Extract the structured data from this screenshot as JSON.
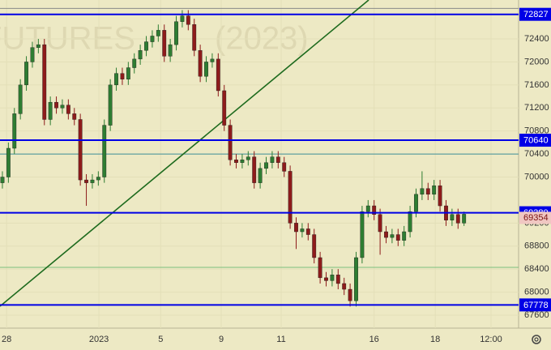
{
  "chart_data": {
    "type": "candlestick",
    "watermark": [
      "FUTURES",
      "(2023)"
    ],
    "open": [
      69900,
      70000,
      70500,
      71100,
      71600,
      72000,
      72250,
      72300,
      71000,
      71300,
      71200,
      71250,
      71100,
      71000,
      69950,
      69900,
      69950,
      70000,
      70900,
      71600,
      71800,
      71700,
      71900,
      72050,
      72200,
      72350,
      72450,
      72550,
      72100,
      72300,
      72700,
      72800,
      72650,
      72200,
      71750,
      72000,
      72050,
      71500,
      70900,
      70300,
      70250,
      70300,
      70350,
      69900,
      70150,
      70250,
      70350,
      70250,
      70100,
      69200,
      69050,
      69100,
      69000,
      68600,
      68250,
      68200,
      68300,
      68150,
      68050,
      67850,
      68600,
      69400,
      69500,
      69350,
      69050,
      68950,
      69000,
      68900,
      69050,
      69400,
      69700,
      69800,
      69700,
      69850,
      69500,
      69250,
      69350,
      69200
    ],
    "high": [
      70100,
      70600,
      71200,
      71700,
      72100,
      72350,
      72400,
      72400,
      71400,
      71400,
      71350,
      71350,
      71200,
      71100,
      70050,
      70050,
      70100,
      71000,
      71700,
      71900,
      71900,
      72000,
      72150,
      72300,
      72450,
      72550,
      72650,
      72650,
      72400,
      72800,
      72900,
      72900,
      72750,
      72300,
      72100,
      72150,
      72150,
      71600,
      71000,
      70400,
      70400,
      70450,
      70450,
      70250,
      70350,
      70450,
      70450,
      70350,
      70200,
      69300,
      69200,
      69200,
      69100,
      68700,
      68350,
      68400,
      68400,
      68250,
      68150,
      68700,
      69500,
      69600,
      69600,
      69450,
      69150,
      69100,
      69100,
      69150,
      69500,
      69800,
      70100,
      69900,
      69950,
      69950,
      69600,
      69450,
      69450,
      69400
    ],
    "low": [
      69800,
      69900,
      70400,
      71000,
      71500,
      71900,
      72150,
      70900,
      70900,
      71100,
      71100,
      71000,
      70900,
      69850,
      69500,
      69800,
      69850,
      69900,
      70800,
      71500,
      71600,
      71600,
      71800,
      71950,
      72100,
      72250,
      72350,
      72000,
      72000,
      72200,
      72600,
      72550,
      72100,
      71650,
      71650,
      71900,
      71400,
      70800,
      70200,
      70150,
      70150,
      70200,
      69800,
      69800,
      70050,
      70150,
      70150,
      70000,
      69100,
      68750,
      68950,
      68900,
      68500,
      68150,
      68100,
      68100,
      68050,
      67950,
      67750,
      67750,
      68500,
      69300,
      69250,
      68650,
      68850,
      68850,
      68800,
      68800,
      68950,
      69300,
      69600,
      69600,
      69600,
      69400,
      69150,
      69150,
      69100,
      69150
    ],
    "close": [
      70000,
      70500,
      71100,
      71600,
      72000,
      72250,
      72300,
      71000,
      71300,
      71200,
      71250,
      71100,
      71000,
      69950,
      69900,
      69950,
      70000,
      70900,
      71600,
      71800,
      71700,
      71900,
      72050,
      72200,
      72350,
      72450,
      72550,
      72100,
      72300,
      72700,
      72800,
      72650,
      72200,
      71750,
      72000,
      72050,
      71500,
      70900,
      70300,
      70250,
      70300,
      70350,
      69900,
      70150,
      70250,
      70350,
      70250,
      70100,
      69200,
      69050,
      69100,
      69000,
      68600,
      68250,
      68200,
      68300,
      68150,
      68050,
      67850,
      68600,
      69400,
      69500,
      69350,
      69050,
      68950,
      69000,
      68900,
      69050,
      69400,
      69700,
      69800,
      69700,
      69850,
      69500,
      69250,
      69350,
      69200,
      69354
    ],
    "up_color": "#2e7d32",
    "down_color": "#8e1b1b",
    "ylim": [
      67375,
      73076
    ],
    "yticks": [
      67600,
      68000,
      68400,
      68800,
      69200,
      70000,
      70400,
      70800,
      71200,
      71600,
      72000,
      72400
    ],
    "xlim": [
      -0.4,
      86.1
    ],
    "xticks": [
      {
        "value": 0.7,
        "label": "28"
      },
      {
        "value": 16.1,
        "label": "2023"
      },
      {
        "value": 26.4,
        "label": "5"
      },
      {
        "value": 36.5,
        "label": "9"
      },
      {
        "value": 46.5,
        "label": "11"
      },
      {
        "value": 62.0,
        "label": "16"
      },
      {
        "value": 72.2,
        "label": "18"
      },
      {
        "value": 81.5,
        "label": "12:00"
      }
    ],
    "levels": [
      72827,
      70640,
      69380,
      67778
    ],
    "level_color": "#0000e6",
    "guides": [
      {
        "value": 72930,
        "color": "#8a8a8a"
      },
      {
        "value": 70400,
        "color": "#3f8f9a"
      },
      {
        "value": 68430,
        "color": "#7cc07c"
      }
    ],
    "trendline": {
      "x": [
        -0.4,
        61.1
      ],
      "y": [
        67755,
        73076
      ],
      "color": "#1e6b1e"
    },
    "grid": true
  }
}
